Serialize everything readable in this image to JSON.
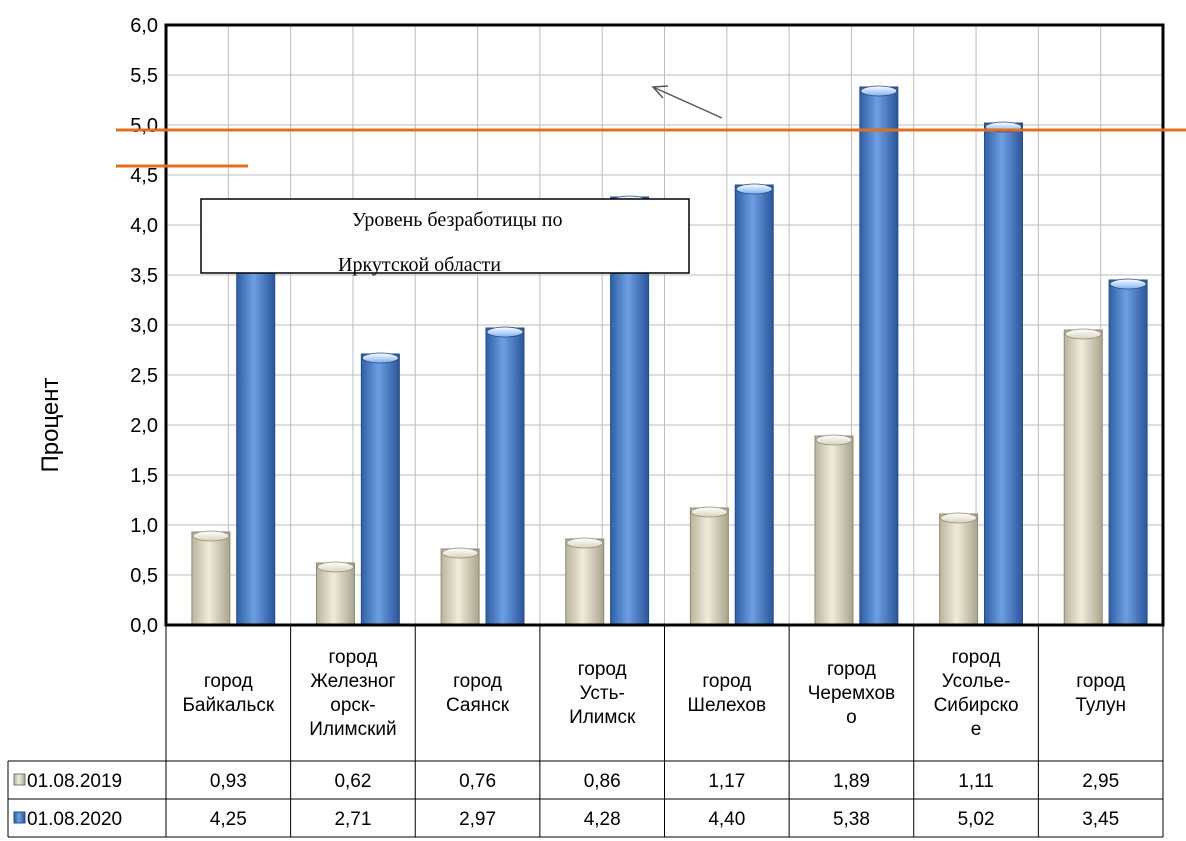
{
  "chart_data": {
    "type": "bar",
    "ylabel": "Процент",
    "ylim": [
      0,
      6
    ],
    "y_ticks": [
      "0,0",
      "0,5",
      "1,0",
      "1,5",
      "2,0",
      "2,5",
      "3,0",
      "3,5",
      "4,0",
      "4,5",
      "5,0",
      "5,5",
      "6,0"
    ],
    "categories": [
      [
        "город",
        "Байкальск"
      ],
      [
        "город",
        "Железног",
        "орск-",
        "Илимский"
      ],
      [
        "город",
        "Саянск"
      ],
      [
        "город",
        "Усть-",
        "Илимск"
      ],
      [
        "город",
        "Шелехов"
      ],
      [
        "город",
        "Черемхов",
        "о"
      ],
      [
        "город",
        "Усолье-",
        "Сибирско",
        "е"
      ],
      [
        "город",
        "Тулун"
      ]
    ],
    "series": [
      {
        "name": "01.08.2019",
        "color": "#e6e2cf",
        "values": [
          0.93,
          0.62,
          0.76,
          0.86,
          1.17,
          1.89,
          1.11,
          2.95
        ],
        "labels": [
          "0,93",
          "0,62",
          "0,76",
          "0,86",
          "1,17",
          "1,89",
          "1,11",
          "2,95"
        ]
      },
      {
        "name": "01.08.2020",
        "color": "#5b8fd6",
        "values": [
          4.25,
          2.71,
          2.97,
          4.28,
          4.4,
          5.38,
          5.02,
          3.45
        ],
        "labels": [
          "4,25",
          "2,71",
          "2,97",
          "4,28",
          "4,40",
          "5,38",
          "5,02",
          "3,45"
        ]
      }
    ],
    "reference_line": {
      "value": 4.95,
      "color": "#e07020"
    },
    "annotation": {
      "lines": [
        "Уровень безработицы по",
        "Иркутской области"
      ]
    },
    "grid": true,
    "legend": "data-table"
  }
}
